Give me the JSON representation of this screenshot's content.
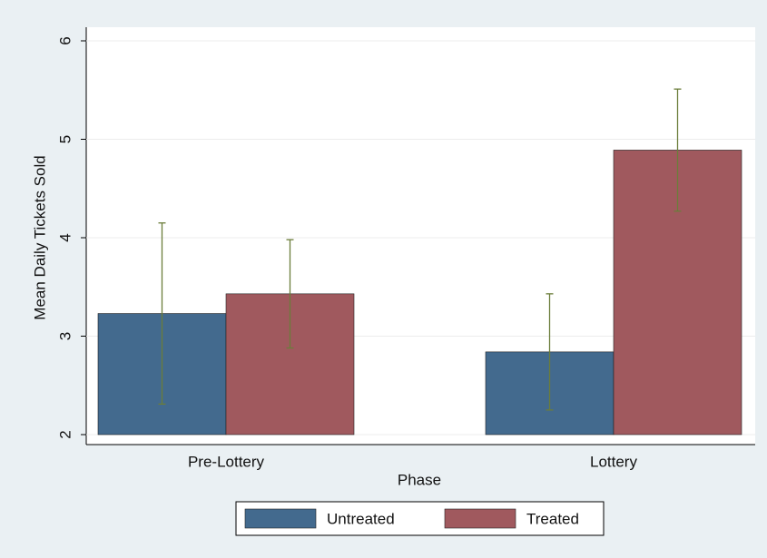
{
  "chart_data": {
    "type": "bar",
    "x_label": "Phase",
    "y_label": "Mean Daily Tickets Sold",
    "categories": [
      "Pre-Lottery",
      "Lottery"
    ],
    "series": [
      {
        "name": "Untreated",
        "color": "#436a8e",
        "values": [
          3.23,
          2.84
        ],
        "errors": [
          0.92,
          0.59
        ]
      },
      {
        "name": "Treated",
        "color": "#a0595e",
        "values": [
          3.43,
          4.89
        ],
        "errors": [
          0.55,
          0.62
        ]
      }
    ],
    "error_color": "#6b7d3a",
    "ylim": [
      2,
      6
    ],
    "yticks": [
      2,
      3,
      4,
      5,
      6
    ],
    "grid": true,
    "legend": "bottom"
  }
}
